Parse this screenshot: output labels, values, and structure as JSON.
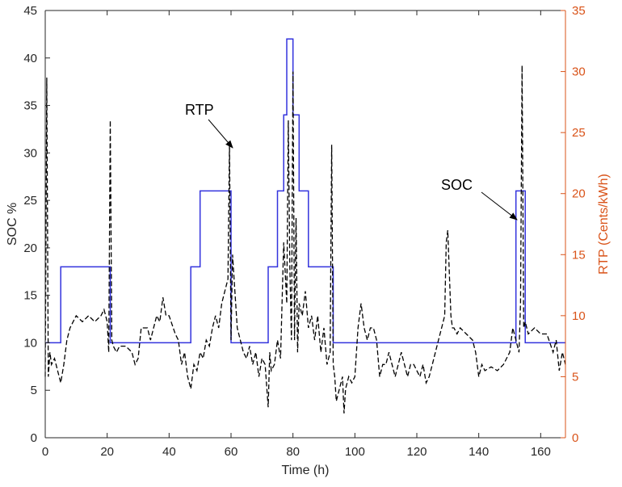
{
  "chart_data": {
    "type": "line",
    "xlabel": "Time (h)",
    "ylabel_left": "SOC %",
    "ylabel_right": "RTP (Cents/kWh)",
    "xlim": [
      0,
      168
    ],
    "ylim_left": [
      0,
      45
    ],
    "ylim_right": [
      0,
      35
    ],
    "xticks": [
      "0",
      "20",
      "40",
      "60",
      "80",
      "100",
      "120",
      "140",
      "160"
    ],
    "yticks_left": [
      "0",
      "5",
      "10",
      "15",
      "20",
      "25",
      "30",
      "35",
      "40",
      "45"
    ],
    "yticks_right": [
      "0",
      "5",
      "10",
      "15",
      "20",
      "25",
      "30",
      "35"
    ],
    "grid": false,
    "colors": {
      "soc": "#3333dd",
      "rtp": "#000000",
      "right_axis": "#d95319",
      "axis": "#262626"
    },
    "annotations": [
      {
        "text": "RTP",
        "x": 63,
        "y": 31
      },
      {
        "text": "SOC",
        "x": 151,
        "y": 23
      }
    ],
    "series": [
      {
        "axis": "left",
        "style": "solid",
        "x": [
          0,
          1,
          1,
          5,
          5,
          21,
          21,
          47,
          47,
          50,
          50,
          60,
          60,
          72,
          72,
          75,
          75,
          77,
          77,
          78,
          78,
          80,
          80,
          82,
          82,
          85,
          85,
          93,
          93,
          152,
          152,
          155,
          155,
          168
        ],
        "values": [
          10,
          10,
          10,
          10,
          18,
          18,
          10,
          10,
          18,
          18,
          26,
          26,
          10,
          10,
          18,
          18,
          26,
          26,
          34,
          34,
          42,
          42,
          34,
          34,
          26,
          26,
          18,
          18,
          10,
          10,
          26,
          26,
          10,
          10
        ]
      },
      {
        "axis": "right",
        "style": "dashed",
        "x": [
          0,
          0.5,
          1,
          1.5,
          2,
          3,
          4,
          5,
          6,
          7,
          8,
          10,
          12,
          14,
          16,
          18,
          19,
          20,
          20.5,
          21,
          21.5,
          22,
          23,
          24,
          26,
          28,
          29,
          30,
          31,
          33,
          34,
          36,
          37,
          38,
          39,
          40,
          42,
          43,
          44,
          45,
          46,
          47,
          48,
          49,
          50,
          51,
          52,
          53,
          54,
          55,
          56,
          57,
          58,
          59,
          59.5,
          60,
          60.5,
          61,
          62,
          63,
          64,
          65,
          66,
          67,
          68,
          69,
          70,
          71,
          72,
          72.5,
          73,
          74,
          75,
          76,
          77,
          78,
          78.5,
          79,
          79.5,
          80,
          80.5,
          81,
          81.5,
          82,
          83,
          84,
          85,
          86,
          87,
          88,
          89,
          90,
          91,
          92,
          92.5,
          93,
          93.5,
          94,
          95,
          96,
          96.5,
          97,
          98,
          99,
          100,
          101,
          102,
          103,
          104,
          105,
          106,
          107,
          108,
          109,
          110,
          111,
          112,
          113,
          114,
          115,
          116,
          117,
          118,
          119,
          120,
          121,
          122,
          123,
          124,
          125,
          126,
          127,
          128,
          129,
          129.5,
          130,
          131,
          131.5,
          132,
          133,
          134,
          136,
          138,
          139,
          140,
          141,
          142,
          144,
          146,
          148,
          150,
          151,
          152,
          153,
          153.5,
          154,
          154.5,
          155,
          156,
          158,
          160,
          162,
          164,
          165,
          166,
          167,
          168
        ],
        "values": [
          5,
          29.5,
          5,
          7,
          6,
          6.5,
          5.5,
          4.5,
          6,
          8,
          9,
          10,
          9.5,
          10,
          9.5,
          10,
          10.5,
          9.5,
          7,
          26,
          8,
          7.5,
          7,
          7.5,
          7.5,
          7,
          6,
          6.5,
          9,
          9,
          8,
          10,
          9.5,
          11.5,
          10,
          10,
          8.5,
          8,
          6,
          7,
          5,
          4,
          6,
          5.5,
          7,
          6.5,
          8,
          7.5,
          9,
          10,
          9,
          11,
          12,
          13,
          24,
          8,
          15,
          13,
          9,
          8,
          7,
          6.5,
          7.5,
          6,
          7,
          5,
          6.5,
          6,
          2.5,
          7,
          5.5,
          6,
          8,
          6.5,
          16,
          11,
          26,
          14,
          8,
          30,
          8,
          18,
          7,
          11,
          10,
          12,
          9,
          10,
          8,
          10,
          7,
          9,
          6,
          7,
          24,
          6,
          5,
          3,
          4,
          5,
          2,
          4,
          5,
          4.5,
          5,
          9,
          11,
          9,
          8,
          9,
          9,
          8,
          5,
          6,
          6,
          7,
          6,
          5,
          6,
          7,
          6,
          5,
          6,
          6,
          5.5,
          5,
          6,
          4.5,
          5,
          6,
          7,
          8,
          9,
          10,
          16,
          17,
          10,
          9,
          9,
          8.5,
          9,
          8.5,
          8,
          7,
          5,
          6,
          5.5,
          5.8,
          5.5,
          6,
          7,
          9,
          8,
          7,
          11,
          30.5,
          9,
          9.5,
          8.5,
          9,
          8.5,
          8.5,
          7,
          8,
          5.5,
          7,
          6
        ]
      }
    ]
  }
}
